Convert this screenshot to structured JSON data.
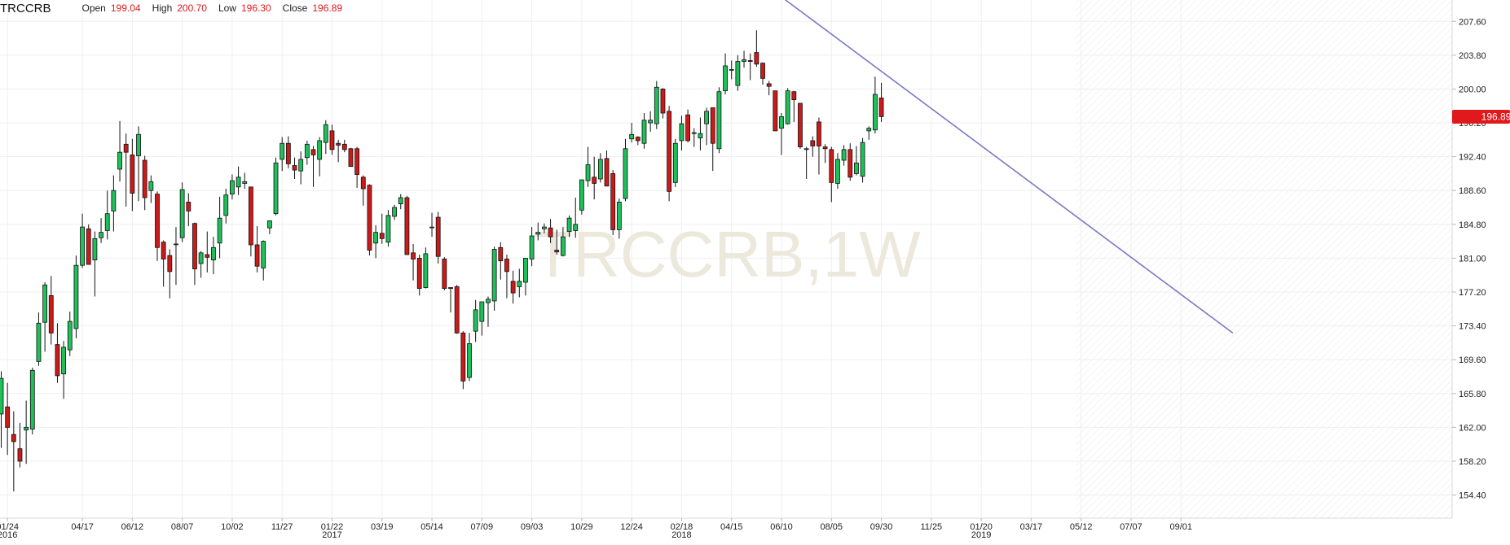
{
  "header": {
    "symbol": "TRCCRB",
    "open_label": "Open",
    "open_value": "199.04",
    "high_label": "High",
    "high_value": "200.70",
    "low_label": "Low",
    "low_value": "196.30",
    "close_label": "Close",
    "close_value": "196.89"
  },
  "watermark": "TRCCRB,1W",
  "price_badge": "196.89",
  "colors": {
    "up": "#1fbf5a",
    "down": "#cc1a1a",
    "trendline": "#7b78c4",
    "badge": "#e0191c",
    "grid": "#efefef",
    "watermark": "#ece8dc"
  },
  "chart_data": {
    "type": "candlestick",
    "title": "",
    "xlabel": "",
    "ylabel": "",
    "ylim": [
      151.8,
      210.0
    ],
    "y_ticks": [
      "207.60",
      "203.80",
      "200.00",
      "196.20",
      "192.40",
      "188.60",
      "184.80",
      "181.00",
      "177.20",
      "173.40",
      "169.60",
      "165.80",
      "162.00",
      "158.20",
      "154.40"
    ],
    "x_tick_labels": [
      {
        "label": "01/24",
        "year": "2016",
        "index": 1
      },
      {
        "label": "04/17",
        "year": "",
        "index": 13
      },
      {
        "label": "06/12",
        "year": "",
        "index": 21
      },
      {
        "label": "08/07",
        "year": "",
        "index": 29
      },
      {
        "label": "10/02",
        "year": "",
        "index": 37
      },
      {
        "label": "11/27",
        "year": "",
        "index": 45
      },
      {
        "label": "01/22",
        "year": "2017",
        "index": 53
      },
      {
        "label": "03/19",
        "year": "",
        "index": 61
      },
      {
        "label": "05/14",
        "year": "",
        "index": 69
      },
      {
        "label": "07/09",
        "year": "",
        "index": 77
      },
      {
        "label": "09/03",
        "year": "",
        "index": 85
      },
      {
        "label": "10/29",
        "year": "",
        "index": 93
      },
      {
        "label": "12/24",
        "year": "",
        "index": 101
      },
      {
        "label": "02/18",
        "year": "2018",
        "index": 109
      },
      {
        "label": "04/15",
        "year": "",
        "index": 117
      },
      {
        "label": "06/10",
        "year": "",
        "index": 125
      },
      {
        "label": "08/05",
        "year": "",
        "index": 133
      },
      {
        "label": "09/30",
        "year": "",
        "index": 141
      },
      {
        "label": "11/25",
        "year": "",
        "index": 149
      },
      {
        "label": "01/20",
        "year": "2019",
        "index": 157
      },
      {
        "label": "03/17",
        "year": "",
        "index": 165
      },
      {
        "label": "05/12",
        "year": "",
        "index": 173
      },
      {
        "label": "07/07",
        "year": "",
        "index": 181
      },
      {
        "label": "09/01",
        "year": "",
        "index": 189
      }
    ],
    "candles": [
      {
        "o": 163.5,
        "h": 168.3,
        "l": 159.7,
        "c": 167.5
      },
      {
        "o": 164.3,
        "h": 167.0,
        "l": 158.9,
        "c": 162.0
      },
      {
        "o": 161.2,
        "h": 163.8,
        "l": 154.8,
        "c": 160.4
      },
      {
        "o": 159.6,
        "h": 162.5,
        "l": 157.5,
        "c": 158.2
      },
      {
        "o": 161.7,
        "h": 165.0,
        "l": 157.9,
        "c": 162.0
      },
      {
        "o": 161.8,
        "h": 168.7,
        "l": 161.2,
        "c": 168.4
      },
      {
        "o": 169.4,
        "h": 174.9,
        "l": 168.9,
        "c": 173.7
      },
      {
        "o": 173.8,
        "h": 178.3,
        "l": 170.5,
        "c": 178.0
      },
      {
        "o": 176.8,
        "h": 179.0,
        "l": 171.3,
        "c": 172.6
      },
      {
        "o": 171.3,
        "h": 173.7,
        "l": 167.0,
        "c": 167.8
      },
      {
        "o": 168.0,
        "h": 171.7,
        "l": 165.2,
        "c": 171.0
      },
      {
        "o": 170.7,
        "h": 175.0,
        "l": 170.0,
        "c": 173.9
      },
      {
        "o": 173.1,
        "h": 181.3,
        "l": 172.0,
        "c": 180.2
      },
      {
        "o": 180.2,
        "h": 186.0,
        "l": 179.9,
        "c": 184.5
      },
      {
        "o": 184.3,
        "h": 184.8,
        "l": 180.3,
        "c": 180.3
      },
      {
        "o": 180.8,
        "h": 184.0,
        "l": 176.7,
        "c": 183.2
      },
      {
        "o": 183.3,
        "h": 185.5,
        "l": 182.7,
        "c": 183.9
      },
      {
        "o": 184.1,
        "h": 188.6,
        "l": 183.1,
        "c": 186.0
      },
      {
        "o": 186.3,
        "h": 190.3,
        "l": 184.0,
        "c": 188.6
      },
      {
        "o": 191.0,
        "h": 196.4,
        "l": 189.6,
        "c": 192.9
      },
      {
        "o": 193.8,
        "h": 195.0,
        "l": 186.8,
        "c": 192.9
      },
      {
        "o": 192.6,
        "h": 194.4,
        "l": 186.3,
        "c": 188.3
      },
      {
        "o": 192.5,
        "h": 195.8,
        "l": 187.4,
        "c": 194.9
      },
      {
        "o": 192.0,
        "h": 192.5,
        "l": 186.4,
        "c": 187.8
      },
      {
        "o": 188.6,
        "h": 190.3,
        "l": 187.2,
        "c": 189.6
      },
      {
        "o": 188.2,
        "h": 188.5,
        "l": 180.7,
        "c": 182.2
      },
      {
        "o": 182.8,
        "h": 183.0,
        "l": 177.8,
        "c": 180.9
      },
      {
        "o": 181.3,
        "h": 182.0,
        "l": 176.5,
        "c": 179.5
      },
      {
        "o": 182.6,
        "h": 184.5,
        "l": 178.0,
        "c": 182.6
      },
      {
        "o": 183.3,
        "h": 189.5,
        "l": 182.8,
        "c": 188.7
      },
      {
        "o": 187.3,
        "h": 188.3,
        "l": 184.6,
        "c": 186.3
      },
      {
        "o": 184.9,
        "h": 185.0,
        "l": 178.0,
        "c": 179.8
      },
      {
        "o": 180.4,
        "h": 181.8,
        "l": 178.8,
        "c": 181.6
      },
      {
        "o": 181.4,
        "h": 184.0,
        "l": 179.4,
        "c": 181.1
      },
      {
        "o": 180.8,
        "h": 183.4,
        "l": 179.2,
        "c": 182.2
      },
      {
        "o": 182.7,
        "h": 187.9,
        "l": 181.0,
        "c": 185.5
      },
      {
        "o": 185.8,
        "h": 188.8,
        "l": 184.9,
        "c": 188.1
      },
      {
        "o": 188.2,
        "h": 190.4,
        "l": 187.6,
        "c": 189.7
      },
      {
        "o": 189.0,
        "h": 191.3,
        "l": 188.1,
        "c": 190.1
      },
      {
        "o": 189.4,
        "h": 190.6,
        "l": 188.8,
        "c": 189.6
      },
      {
        "o": 189.0,
        "h": 189.0,
        "l": 181.2,
        "c": 182.5
      },
      {
        "o": 182.5,
        "h": 184.6,
        "l": 179.4,
        "c": 180.1
      },
      {
        "o": 179.9,
        "h": 183.0,
        "l": 178.5,
        "c": 182.9
      },
      {
        "o": 184.4,
        "h": 185.2,
        "l": 183.7,
        "c": 185.2
      },
      {
        "o": 186.0,
        "h": 192.3,
        "l": 185.8,
        "c": 191.7
      },
      {
        "o": 192.1,
        "h": 194.6,
        "l": 190.8,
        "c": 193.9
      },
      {
        "o": 193.9,
        "h": 194.7,
        "l": 191.1,
        "c": 191.6
      },
      {
        "o": 191.4,
        "h": 192.3,
        "l": 189.9,
        "c": 190.9
      },
      {
        "o": 190.8,
        "h": 193.0,
        "l": 189.3,
        "c": 192.1
      },
      {
        "o": 192.3,
        "h": 194.2,
        "l": 191.5,
        "c": 193.8
      },
      {
        "o": 193.2,
        "h": 193.6,
        "l": 189.0,
        "c": 192.6
      },
      {
        "o": 192.1,
        "h": 194.6,
        "l": 190.2,
        "c": 194.2
      },
      {
        "o": 194.0,
        "h": 196.5,
        "l": 192.7,
        "c": 196.0
      },
      {
        "o": 195.3,
        "h": 196.0,
        "l": 192.6,
        "c": 193.2
      },
      {
        "o": 193.9,
        "h": 194.3,
        "l": 191.8,
        "c": 193.7
      },
      {
        "o": 193.8,
        "h": 194.3,
        "l": 192.9,
        "c": 193.2
      },
      {
        "o": 193.3,
        "h": 193.4,
        "l": 191.3,
        "c": 191.3
      },
      {
        "o": 193.3,
        "h": 193.5,
        "l": 188.9,
        "c": 190.4
      },
      {
        "o": 190.1,
        "h": 190.3,
        "l": 186.9,
        "c": 188.8
      },
      {
        "o": 189.2,
        "h": 189.3,
        "l": 181.3,
        "c": 181.9
      },
      {
        "o": 182.7,
        "h": 184.7,
        "l": 181.0,
        "c": 183.9
      },
      {
        "o": 183.8,
        "h": 186.0,
        "l": 182.6,
        "c": 183.2
      },
      {
        "o": 182.8,
        "h": 186.4,
        "l": 182.3,
        "c": 185.8
      },
      {
        "o": 185.7,
        "h": 187.0,
        "l": 185.3,
        "c": 186.7
      },
      {
        "o": 187.1,
        "h": 188.2,
        "l": 186.5,
        "c": 187.8
      },
      {
        "o": 187.8,
        "h": 188.0,
        "l": 181.4,
        "c": 181.4
      },
      {
        "o": 181.6,
        "h": 182.6,
        "l": 178.5,
        "c": 180.9
      },
      {
        "o": 181.0,
        "h": 181.4,
        "l": 176.8,
        "c": 177.6
      },
      {
        "o": 177.7,
        "h": 182.2,
        "l": 177.6,
        "c": 181.5
      },
      {
        "o": 184.5,
        "h": 186.1,
        "l": 183.4,
        "c": 184.5
      },
      {
        "o": 185.6,
        "h": 186.2,
        "l": 180.4,
        "c": 181.2
      },
      {
        "o": 180.9,
        "h": 181.1,
        "l": 177.4,
        "c": 177.6
      },
      {
        "o": 177.7,
        "h": 177.7,
        "l": 174.9,
        "c": 177.6
      },
      {
        "o": 177.8,
        "h": 178.0,
        "l": 172.5,
        "c": 172.6
      },
      {
        "o": 172.6,
        "h": 172.8,
        "l": 166.3,
        "c": 167.2
      },
      {
        "o": 167.6,
        "h": 172.6,
        "l": 167.2,
        "c": 171.4
      },
      {
        "o": 172.8,
        "h": 176.3,
        "l": 171.6,
        "c": 175.2
      },
      {
        "o": 173.9,
        "h": 176.0,
        "l": 172.3,
        "c": 176.1
      },
      {
        "o": 176.0,
        "h": 176.7,
        "l": 173.3,
        "c": 176.4
      },
      {
        "o": 176.2,
        "h": 182.3,
        "l": 175.1,
        "c": 182.0
      },
      {
        "o": 182.2,
        "h": 182.8,
        "l": 178.6,
        "c": 180.7
      },
      {
        "o": 180.9,
        "h": 181.4,
        "l": 176.5,
        "c": 179.5
      },
      {
        "o": 178.4,
        "h": 179.6,
        "l": 175.9,
        "c": 177.1
      },
      {
        "o": 177.8,
        "h": 179.8,
        "l": 176.6,
        "c": 178.4
      },
      {
        "o": 178.3,
        "h": 181.0,
        "l": 176.8,
        "c": 181.0
      },
      {
        "o": 180.9,
        "h": 184.5,
        "l": 180.1,
        "c": 183.5
      },
      {
        "o": 183.7,
        "h": 185.0,
        "l": 183.0,
        "c": 183.9
      },
      {
        "o": 184.3,
        "h": 184.9,
        "l": 183.8,
        "c": 184.5
      },
      {
        "o": 184.4,
        "h": 185.4,
        "l": 182.7,
        "c": 183.4
      },
      {
        "o": 181.9,
        "h": 184.2,
        "l": 181.4,
        "c": 181.7
      },
      {
        "o": 181.3,
        "h": 184.5,
        "l": 181.2,
        "c": 183.4
      },
      {
        "o": 184.0,
        "h": 185.8,
        "l": 183.4,
        "c": 185.5
      },
      {
        "o": 184.1,
        "h": 187.8,
        "l": 183.3,
        "c": 184.8
      },
      {
        "o": 186.4,
        "h": 189.8,
        "l": 185.9,
        "c": 189.8
      },
      {
        "o": 189.7,
        "h": 193.5,
        "l": 189.0,
        "c": 191.5
      },
      {
        "o": 190.1,
        "h": 192.4,
        "l": 187.6,
        "c": 189.4
      },
      {
        "o": 189.9,
        "h": 192.8,
        "l": 189.5,
        "c": 192.1
      },
      {
        "o": 192.2,
        "h": 193.1,
        "l": 189.1,
        "c": 189.1
      },
      {
        "o": 190.5,
        "h": 190.9,
        "l": 183.6,
        "c": 184.2
      },
      {
        "o": 184.2,
        "h": 187.7,
        "l": 183.2,
        "c": 187.3
      },
      {
        "o": 187.7,
        "h": 194.4,
        "l": 187.4,
        "c": 193.3
      },
      {
        "o": 194.4,
        "h": 196.2,
        "l": 194.0,
        "c": 194.9
      },
      {
        "o": 194.6,
        "h": 194.7,
        "l": 193.7,
        "c": 194.2
      },
      {
        "o": 193.9,
        "h": 197.3,
        "l": 193.3,
        "c": 196.5
      },
      {
        "o": 196.2,
        "h": 197.5,
        "l": 195.2,
        "c": 196.5
      },
      {
        "o": 196.1,
        "h": 200.9,
        "l": 195.5,
        "c": 200.2
      },
      {
        "o": 200.0,
        "h": 200.1,
        "l": 196.7,
        "c": 197.3
      },
      {
        "o": 197.5,
        "h": 198.1,
        "l": 187.4,
        "c": 188.5
      },
      {
        "o": 189.5,
        "h": 194.4,
        "l": 189.0,
        "c": 193.9
      },
      {
        "o": 194.2,
        "h": 197.0,
        "l": 193.1,
        "c": 196.1
      },
      {
        "o": 197.1,
        "h": 197.7,
        "l": 194.0,
        "c": 194.2
      },
      {
        "o": 195.0,
        "h": 195.6,
        "l": 193.5,
        "c": 195.1
      },
      {
        "o": 194.5,
        "h": 196.8,
        "l": 193.1,
        "c": 195.0
      },
      {
        "o": 196.1,
        "h": 197.9,
        "l": 193.7,
        "c": 197.5
      },
      {
        "o": 197.9,
        "h": 197.8,
        "l": 190.8,
        "c": 193.9
      },
      {
        "o": 193.3,
        "h": 200.2,
        "l": 192.8,
        "c": 199.7
      },
      {
        "o": 199.8,
        "h": 204.0,
        "l": 199.4,
        "c": 202.6
      },
      {
        "o": 202.2,
        "h": 203.2,
        "l": 201.1,
        "c": 202.2
      },
      {
        "o": 200.4,
        "h": 203.8,
        "l": 199.8,
        "c": 203.1
      },
      {
        "o": 203.1,
        "h": 204.3,
        "l": 202.4,
        "c": 203.3
      },
      {
        "o": 203.2,
        "h": 204.0,
        "l": 201.0,
        "c": 203.1
      },
      {
        "o": 204.1,
        "h": 206.6,
        "l": 202.5,
        "c": 202.8
      },
      {
        "o": 202.9,
        "h": 203.0,
        "l": 200.5,
        "c": 201.2
      },
      {
        "o": 200.6,
        "h": 200.9,
        "l": 199.3,
        "c": 200.3
      },
      {
        "o": 199.8,
        "h": 199.8,
        "l": 195.3,
        "c": 195.3
      },
      {
        "o": 195.6,
        "h": 197.3,
        "l": 192.6,
        "c": 196.9
      },
      {
        "o": 196.1,
        "h": 200.1,
        "l": 196.0,
        "c": 199.8
      },
      {
        "o": 199.7,
        "h": 199.8,
        "l": 196.3,
        "c": 198.8
      },
      {
        "o": 198.4,
        "h": 198.4,
        "l": 193.3,
        "c": 193.5
      },
      {
        "o": 193.2,
        "h": 193.5,
        "l": 189.9,
        "c": 193.3
      },
      {
        "o": 194.2,
        "h": 194.7,
        "l": 192.4,
        "c": 193.6
      },
      {
        "o": 196.3,
        "h": 196.8,
        "l": 190.4,
        "c": 193.6
      },
      {
        "o": 193.5,
        "h": 193.8,
        "l": 191.7,
        "c": 193.3
      },
      {
        "o": 193.2,
        "h": 193.5,
        "l": 187.3,
        "c": 189.5
      },
      {
        "o": 189.4,
        "h": 192.8,
        "l": 188.8,
        "c": 192.1
      },
      {
        "o": 192.0,
        "h": 193.7,
        "l": 191.4,
        "c": 193.2
      },
      {
        "o": 193.2,
        "h": 193.9,
        "l": 189.7,
        "c": 190.1
      },
      {
        "o": 190.5,
        "h": 193.6,
        "l": 190.3,
        "c": 191.7
      },
      {
        "o": 190.2,
        "h": 194.5,
        "l": 189.5,
        "c": 194.0
      },
      {
        "o": 195.3,
        "h": 195.8,
        "l": 194.3,
        "c": 195.6
      },
      {
        "o": 195.4,
        "h": 201.4,
        "l": 195.0,
        "c": 199.4
      },
      {
        "o": 199.0,
        "h": 200.7,
        "l": 196.3,
        "c": 196.9
      }
    ],
    "trendline": [
      {
        "index": 124.5,
        "value": 210.6
      },
      {
        "index": 197.3,
        "value": 172.6
      }
    ],
    "last_price": 196.89
  }
}
